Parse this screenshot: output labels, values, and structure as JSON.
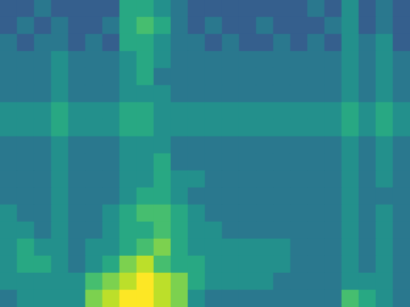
{
  "chart_data": {
    "type": "heatmap",
    "grid": false,
    "tick_labels": false,
    "color_range": [
      0,
      10
    ],
    "cells": [
      [
        3,
        3,
        4,
        3,
        3,
        3,
        3,
        6,
        6,
        5,
        4,
        3,
        3,
        3,
        3,
        3,
        3,
        3,
        4,
        3,
        5,
        3,
        4,
        3
      ],
      [
        3,
        4,
        3,
        4,
        3,
        3,
        4,
        6,
        7,
        6,
        4,
        3,
        4,
        3,
        3,
        4,
        3,
        3,
        3,
        4,
        5,
        3,
        4,
        3
      ],
      [
        4,
        3,
        4,
        4,
        3,
        4,
        3,
        6,
        6,
        5,
        4,
        4,
        3,
        4,
        3,
        3,
        4,
        3,
        4,
        3,
        5,
        4,
        5,
        3
      ],
      [
        4,
        4,
        4,
        5,
        4,
        4,
        4,
        5,
        6,
        5,
        4,
        4,
        4,
        4,
        4,
        4,
        4,
        4,
        4,
        4,
        5,
        4,
        5,
        4
      ],
      [
        4,
        4,
        4,
        5,
        4,
        4,
        4,
        5,
        6,
        4,
        4,
        4,
        4,
        4,
        4,
        4,
        4,
        4,
        4,
        4,
        5,
        4,
        5,
        4
      ],
      [
        4,
        4,
        4,
        5,
        4,
        4,
        4,
        5,
        5,
        5,
        4,
        4,
        4,
        4,
        4,
        4,
        4,
        4,
        4,
        4,
        5,
        4,
        5,
        4
      ],
      [
        5,
        5,
        5,
        6,
        5,
        5,
        5,
        6,
        6,
        5,
        5,
        5,
        5,
        5,
        5,
        5,
        5,
        5,
        5,
        5,
        6,
        5,
        6,
        5
      ],
      [
        5,
        5,
        5,
        6,
        5,
        5,
        5,
        6,
        6,
        5,
        5,
        5,
        5,
        5,
        5,
        5,
        5,
        5,
        5,
        5,
        6,
        5,
        6,
        5
      ],
      [
        4,
        4,
        4,
        5,
        4,
        4,
        4,
        5,
        5,
        5,
        4,
        4,
        4,
        4,
        4,
        4,
        4,
        4,
        4,
        4,
        5,
        4,
        5,
        4
      ],
      [
        4,
        4,
        4,
        5,
        4,
        4,
        4,
        5,
        5,
        6,
        4,
        4,
        4,
        4,
        4,
        4,
        4,
        4,
        4,
        4,
        5,
        4,
        5,
        4
      ],
      [
        4,
        4,
        4,
        5,
        4,
        4,
        4,
        5,
        5,
        6,
        5,
        5,
        4,
        4,
        4,
        4,
        4,
        4,
        4,
        4,
        5,
        4,
        5,
        4
      ],
      [
        4,
        4,
        4,
        5,
        4,
        4,
        4,
        5,
        6,
        6,
        5,
        4,
        4,
        4,
        4,
        4,
        4,
        4,
        4,
        4,
        5,
        4,
        4,
        4
      ],
      [
        5,
        4,
        4,
        5,
        4,
        4,
        5,
        6,
        7,
        7,
        6,
        5,
        4,
        4,
        4,
        4,
        4,
        4,
        4,
        4,
        5,
        4,
        5,
        4
      ],
      [
        5,
        5,
        4,
        5,
        4,
        4,
        5,
        6,
        6,
        7,
        6,
        5,
        5,
        4,
        4,
        4,
        4,
        4,
        4,
        4,
        5,
        4,
        5,
        4
      ],
      [
        5,
        6,
        5,
        5,
        4,
        5,
        5,
        6,
        7,
        8,
        6,
        5,
        5,
        5,
        5,
        5,
        5,
        4,
        4,
        4,
        5,
        4,
        5,
        4
      ],
      [
        5,
        6,
        6,
        5,
        4,
        5,
        6,
        8,
        9,
        7,
        6,
        6,
        5,
        5,
        5,
        5,
        5,
        4,
        4,
        4,
        5,
        4,
        5,
        4
      ],
      [
        5,
        5,
        5,
        5,
        5,
        7,
        8,
        9,
        10,
        9,
        8,
        6,
        5,
        5,
        5,
        5,
        4,
        4,
        4,
        4,
        5,
        5,
        5,
        4
      ],
      [
        4,
        5,
        5,
        5,
        5,
        8,
        9,
        10,
        10,
        9,
        8,
        5,
        4,
        4,
        4,
        4,
        4,
        4,
        4,
        4,
        7,
        6,
        5,
        4
      ]
    ]
  }
}
